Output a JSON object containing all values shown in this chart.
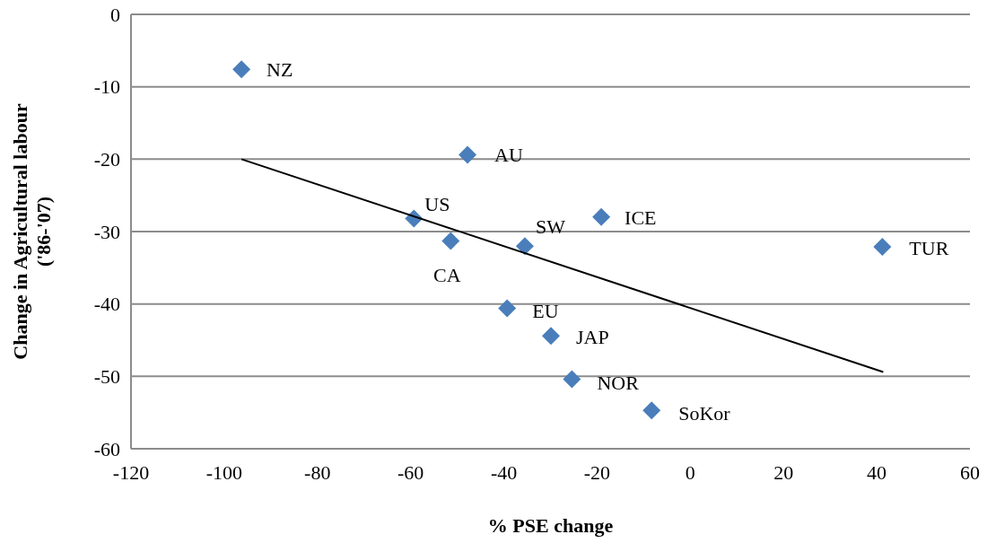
{
  "chart_data": {
    "type": "scatter",
    "xlabel": "% PSE change",
    "ylabel": "Change in Agricultural labour ('86-'07)",
    "xlim": [
      -120,
      60
    ],
    "xticks": [
      -120,
      -100,
      -80,
      -60,
      -40,
      -20,
      0,
      20,
      40,
      60
    ],
    "ylim": [
      -60,
      0
    ],
    "yticks": [
      -60,
      -50,
      -40,
      -30,
      -20,
      -10,
      0
    ],
    "grid": "y",
    "series": [
      {
        "marker": "diamond",
        "color": "#4a7ebb",
        "x": [
          -96.3,
          -47.8,
          -59.3,
          -51.4,
          -35.5,
          -19.1,
          41.2,
          -39.3,
          -29.9,
          -25.4,
          -8.3
        ],
        "values": [
          -7.6,
          -19.4,
          -28.2,
          -31.3,
          -32.0,
          -28.0,
          -32.1,
          -40.6,
          -44.4,
          -50.4,
          -54.7
        ]
      },
      {
        "type": "line",
        "marker": "none",
        "color": "#000000",
        "x": [
          -96.3,
          41.4
        ],
        "values": [
          -20,
          -49.4
        ]
      }
    ],
    "annotations": [
      {
        "text": "NZ",
        "x": -96.3,
        "y": -7.6
      },
      {
        "text": "AU",
        "x": -47.8,
        "y": -19.4
      },
      {
        "text": "US",
        "x": -59.3,
        "y": -28.2
      },
      {
        "text": "CA",
        "x": -51.4,
        "y": -31.3
      },
      {
        "text": "SW",
        "x": -35.5,
        "y": -32.0
      },
      {
        "text": "ICE",
        "x": -19.1,
        "y": -28.0
      },
      {
        "text": "TUR",
        "x": 41.2,
        "y": -32.1
      },
      {
        "text": "EU",
        "x": -39.3,
        "y": -40.6
      },
      {
        "text": "JAP",
        "x": -29.9,
        "y": -44.4
      },
      {
        "text": "NOR",
        "x": -25.4,
        "y": -50.4
      },
      {
        "text": "SoKor",
        "x": -8.3,
        "y": -54.7
      }
    ]
  }
}
